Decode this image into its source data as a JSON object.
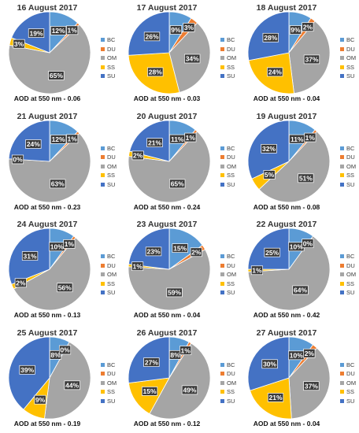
{
  "legend": {
    "items": [
      {
        "label": "BC",
        "color": "#5b9bd5"
      },
      {
        "label": "DU",
        "color": "#ed7d31"
      },
      {
        "label": "OM",
        "color": "#a5a5a5"
      },
      {
        "label": "SS",
        "color": "#ffc000"
      },
      {
        "label": "SU",
        "color": "#4472c4"
      }
    ],
    "placement": "right of each pie"
  },
  "chart_data": [
    {
      "type": "pie",
      "title": "16 August 2017",
      "caption": "AOD at 550 nm - 0.06",
      "categories": [
        "BC",
        "DU",
        "OM",
        "SS",
        "SU"
      ],
      "values": [
        12,
        1,
        65,
        3,
        19
      ],
      "data_labels": [
        "12%",
        "1%",
        "65%",
        "3%",
        "19%"
      ]
    },
    {
      "type": "pie",
      "title": "17 August 2017",
      "caption": "AOD at 550 nm - 0.03",
      "categories": [
        "BC",
        "DU",
        "OM",
        "SS",
        "SU"
      ],
      "values": [
        9,
        3,
        34,
        28,
        26
      ],
      "data_labels": [
        "9%",
        "3%",
        "34%",
        "28%",
        "26%"
      ]
    },
    {
      "type": "pie",
      "title": "18 August 2017",
      "caption": "AOD at 550 nm - 0.04",
      "categories": [
        "BC",
        "DU",
        "OM",
        "SS",
        "SU"
      ],
      "values": [
        9,
        2,
        37,
        24,
        28
      ],
      "data_labels": [
        "9%",
        "2%",
        "37%",
        "24%",
        "28%"
      ]
    },
    {
      "type": "pie",
      "title": "21 August 2017",
      "caption": "AOD at 550 nm - 0.23",
      "categories": [
        "BC",
        "DU",
        "OM",
        "SS",
        "SU"
      ],
      "values": [
        12,
        1,
        63,
        0,
        24
      ],
      "data_labels": [
        "12%",
        "1%",
        "63%",
        "0%",
        "24%"
      ]
    },
    {
      "type": "pie",
      "title": "20 August 2017",
      "caption": "AOD at 550 nm - 0.24",
      "categories": [
        "BC",
        "DU",
        "OM",
        "SS",
        "SU"
      ],
      "values": [
        11,
        1,
        65,
        2,
        21
      ],
      "data_labels": [
        "11%",
        "1%",
        "65%",
        "2%",
        "21%"
      ]
    },
    {
      "type": "pie",
      "title": "19 August 2017",
      "caption": "AOD at 550 nm - 0.08",
      "categories": [
        "BC",
        "DU",
        "OM",
        "SS",
        "SU"
      ],
      "values": [
        11,
        1,
        51,
        5,
        32
      ],
      "data_labels": [
        "11%",
        "1%",
        "51%",
        "5%",
        "32%"
      ]
    },
    {
      "type": "pie",
      "title": "24 August 2017",
      "caption": "AOD at 550 nm - 0.13",
      "categories": [
        "BC",
        "DU",
        "OM",
        "SS",
        "SU"
      ],
      "values": [
        10,
        1,
        56,
        2,
        31
      ],
      "data_labels": [
        "10%",
        "1%",
        "56%",
        "2%",
        "31%"
      ]
    },
    {
      "type": "pie",
      "title": "23 August 2017",
      "caption": "AOD at 550 nm - 0.04",
      "categories": [
        "BC",
        "DU",
        "OM",
        "SS",
        "SU"
      ],
      "values": [
        15,
        2,
        59,
        1,
        23
      ],
      "data_labels": [
        "15%",
        "2%",
        "59%",
        "1%",
        "23%"
      ]
    },
    {
      "type": "pie",
      "title": "22 August 2017",
      "caption": "AOD at 550 nm - 0.42",
      "categories": [
        "BC",
        "DU",
        "OM",
        "SS",
        "SU"
      ],
      "values": [
        10,
        0,
        64,
        1,
        25
      ],
      "data_labels": [
        "10%",
        "0%",
        "64%",
        "1%",
        "25%"
      ]
    },
    {
      "type": "pie",
      "title": "25 August 2017",
      "caption": "AOD at 550 nm - 0.19",
      "categories": [
        "BC",
        "DU",
        "OM",
        "SS",
        "SU"
      ],
      "values": [
        8,
        0,
        44,
        9,
        39
      ],
      "data_labels": [
        "8%",
        "0%",
        "44%",
        "9%",
        "39%"
      ]
    },
    {
      "type": "pie",
      "title": "26 August 2017",
      "caption": "AOD at 550 nm - 0.12",
      "categories": [
        "BC",
        "DU",
        "OM",
        "SS",
        "SU"
      ],
      "values": [
        8,
        1,
        49,
        15,
        27
      ],
      "data_labels": [
        "8%",
        "1%",
        "49%",
        "15%",
        "27%"
      ]
    },
    {
      "type": "pie",
      "title": "27 August 2017",
      "caption": "AOD at 550 nm - 0.04",
      "categories": [
        "BC",
        "DU",
        "OM",
        "SS",
        "SU"
      ],
      "values": [
        10,
        2,
        37,
        21,
        30
      ],
      "data_labels": [
        "10%",
        "2%",
        "37%",
        "21%",
        "30%"
      ]
    }
  ]
}
